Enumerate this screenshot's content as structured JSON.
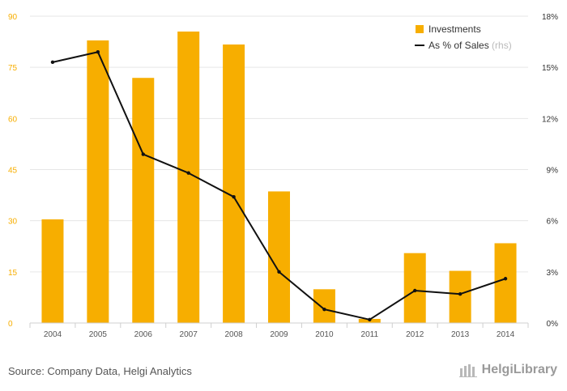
{
  "chart_data": {
    "type": "bar+line",
    "categories": [
      "2004",
      "2005",
      "2006",
      "2007",
      "2008",
      "2009",
      "2010",
      "2011",
      "2012",
      "2013",
      "2014"
    ],
    "series": [
      {
        "name": "Investments",
        "type": "bar",
        "axis": "left",
        "color": "#f7ae00",
        "values": [
          30.4,
          82.9,
          71.9,
          85.5,
          81.7,
          38.6,
          9.9,
          1.2,
          20.5,
          15.3,
          23.4
        ]
      },
      {
        "name": "As % of Sales",
        "name_suffix": "(rhs)",
        "type": "line",
        "axis": "right",
        "color": "#111111",
        "values": [
          15.3,
          15.9,
          9.9,
          8.8,
          7.4,
          3.0,
          0.8,
          0.2,
          1.9,
          1.7,
          2.6
        ]
      }
    ],
    "left_axis": {
      "min": 0,
      "max": 90,
      "ticks": [
        0,
        15,
        30,
        45,
        60,
        75,
        90
      ],
      "color": "#f7ae00"
    },
    "right_axis": {
      "min": 0,
      "max": 18,
      "ticks": [
        "0%",
        "3%",
        "6%",
        "9%",
        "12%",
        "15%",
        "18%"
      ],
      "color": "#333333"
    },
    "grid": true,
    "legend": "top-right"
  },
  "footer": {
    "source": "Source: Company Data, Helgi Analytics",
    "brand": "HelgiLibrary"
  },
  "colors": {
    "grid": "#e6e6e6",
    "axis": "#cfcfcf",
    "category_text": "#555555",
    "muted": "#bbbbbb"
  }
}
